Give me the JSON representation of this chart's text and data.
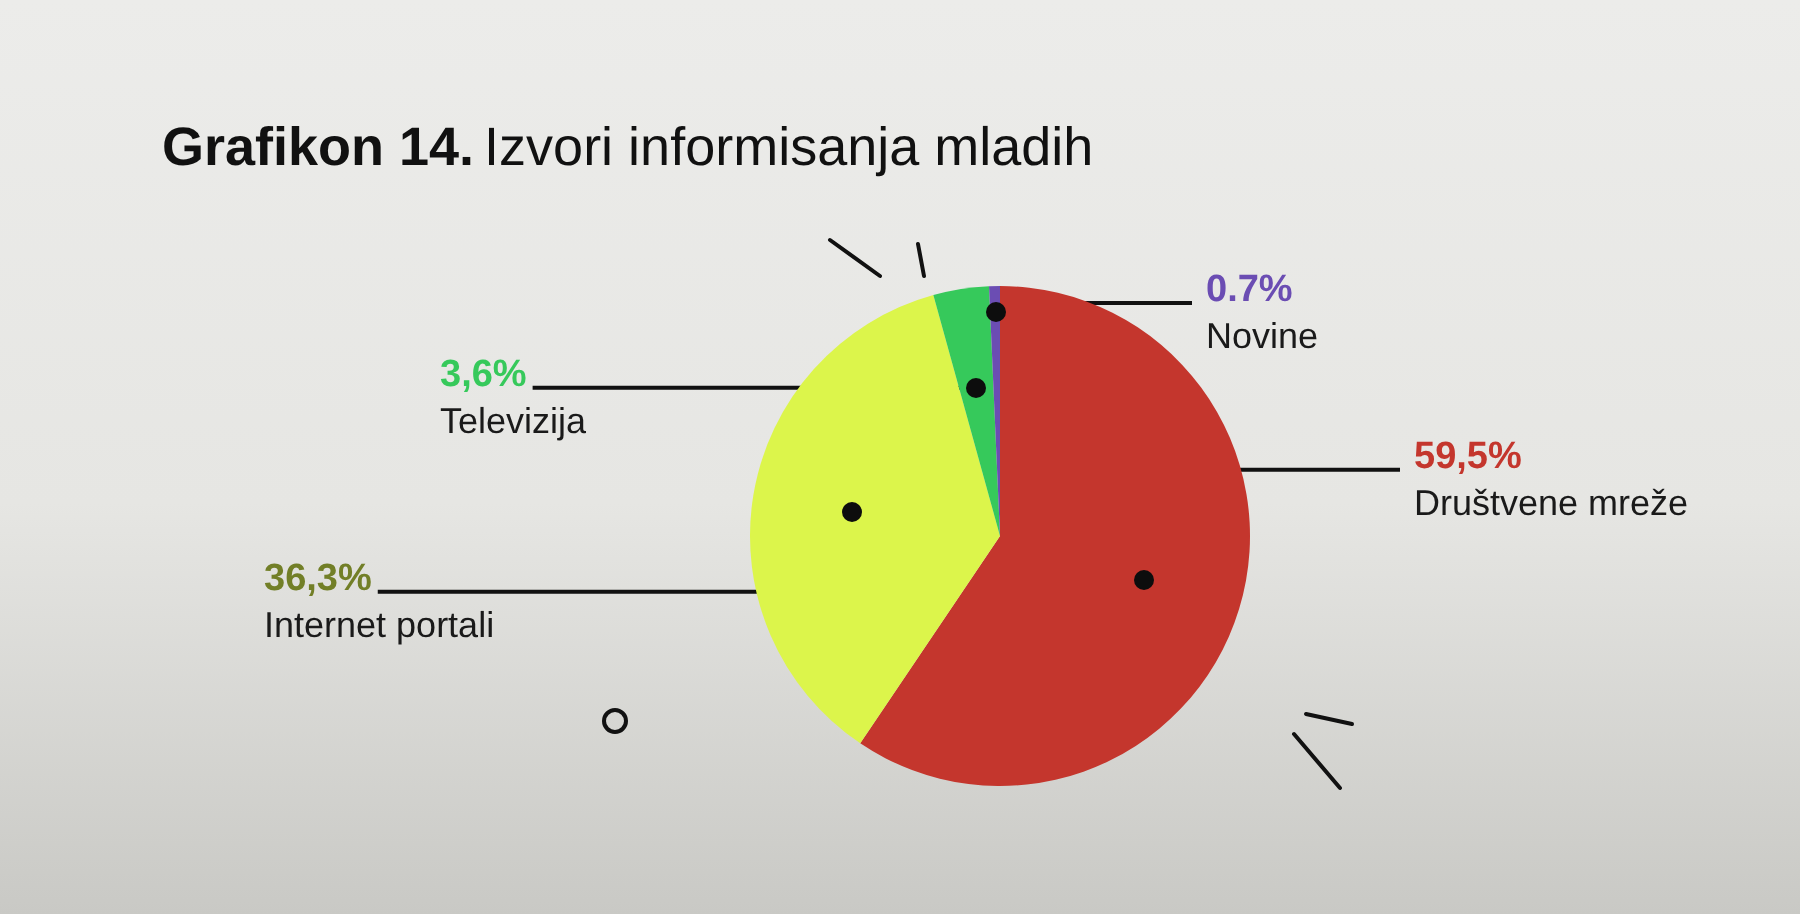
{
  "chart_data": {
    "type": "pie",
    "title": "Grafikon 14. Izvori informisanja mladih",
    "categories": [
      "Društvene mreže",
      "Internet portali",
      "Televizija",
      "Novine"
    ],
    "values": [
      59.5,
      36.3,
      3.6,
      0.7
    ],
    "colors": [
      "#c4362d",
      "#dcf54b",
      "#36c95b",
      "#6b4db3"
    ],
    "value_labels": [
      "59,5%",
      "36,3%",
      "3,6%",
      "0.7%"
    ]
  }
}
